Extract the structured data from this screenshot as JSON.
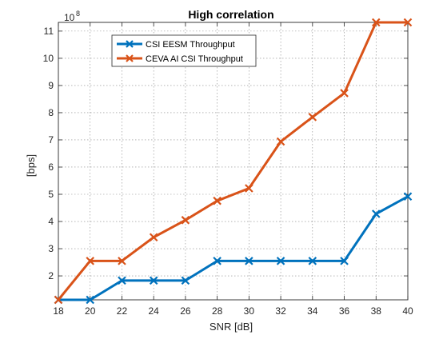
{
  "chart_data": {
    "type": "line",
    "title": "High correlation",
    "xlabel": "SNR [dB]",
    "ylabel": "[bps]",
    "y_exponent_label": "10",
    "y_exponent_power": "8",
    "x": [
      18,
      20,
      22,
      24,
      26,
      28,
      30,
      32,
      34,
      36,
      38,
      40
    ],
    "xticks": [
      "18",
      "20",
      "22",
      "24",
      "26",
      "28",
      "30",
      "32",
      "34",
      "36",
      "38",
      "40"
    ],
    "yticks": [
      "2",
      "3",
      "4",
      "5",
      "6",
      "7",
      "8",
      "9",
      "10",
      "11"
    ],
    "ytick_values": [
      2,
      3,
      4,
      5,
      6,
      7,
      8,
      9,
      10,
      11
    ],
    "xlim": [
      18,
      40
    ],
    "ylim": [
      1.12,
      11.32
    ],
    "grid": true,
    "legend_position": "top-left",
    "series": [
      {
        "name": "CSI EESM Throughput",
        "color": "#0072BD",
        "marker": "x",
        "values": [
          1.12,
          1.12,
          1.83,
          1.83,
          1.83,
          2.55,
          2.55,
          2.55,
          2.55,
          2.55,
          4.28,
          4.92
        ]
      },
      {
        "name": "CEVA AI CSI Throughput",
        "color": "#D95319",
        "marker": "x",
        "values": [
          1.12,
          2.55,
          2.55,
          3.42,
          4.05,
          4.76,
          5.22,
          6.94,
          7.84,
          8.72,
          11.32,
          11.32
        ]
      }
    ]
  }
}
